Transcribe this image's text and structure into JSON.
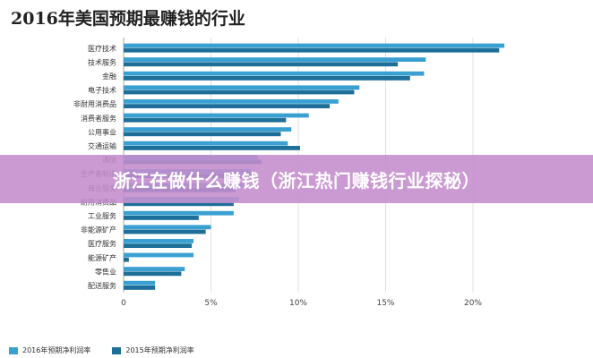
{
  "chart_data": {
    "type": "bar",
    "orientation": "horizontal",
    "title": "2016年美国预期最赚钱的行业",
    "categories": [
      "医疗技术",
      "技术服务",
      "金融",
      "电子技术",
      "非耐用消费品",
      "消费者服务",
      "公用事业",
      "交通运输",
      "通信",
      "生产者制造",
      "商业服务",
      "耐用消费品",
      "工业服务",
      "非能源矿产",
      "医疗服务",
      "能源矿产",
      "零售业",
      "配送服务"
    ],
    "series": [
      {
        "name": "2016年预期净利润率",
        "color": "#3aa0d2",
        "values": [
          21.8,
          17.3,
          17.2,
          13.5,
          12.3,
          10.6,
          9.6,
          9.4,
          7.7,
          7.3,
          6.9,
          6.6,
          6.3,
          5.0,
          4.0,
          4.0,
          3.5,
          1.8
        ]
      },
      {
        "name": "2015年预期净利润率",
        "color": "#1d6f99",
        "values": [
          21.5,
          15.7,
          16.4,
          13.2,
          11.8,
          9.3,
          9.0,
          10.1,
          7.9,
          7.4,
          6.4,
          6.3,
          4.3,
          4.7,
          3.9,
          0.3,
          3.3,
          1.8
        ]
      }
    ],
    "xlim": [
      0,
      22
    ],
    "xticks": [
      0,
      5,
      10,
      15,
      20
    ],
    "tick_labels": [
      "0",
      "5%",
      "10%",
      "15%",
      "20%"
    ],
    "grid": true,
    "legend_position": "bottom-left"
  },
  "banner": {
    "text": "浙江在做什么赚钱（浙江热门赚钱行业探秘）"
  }
}
